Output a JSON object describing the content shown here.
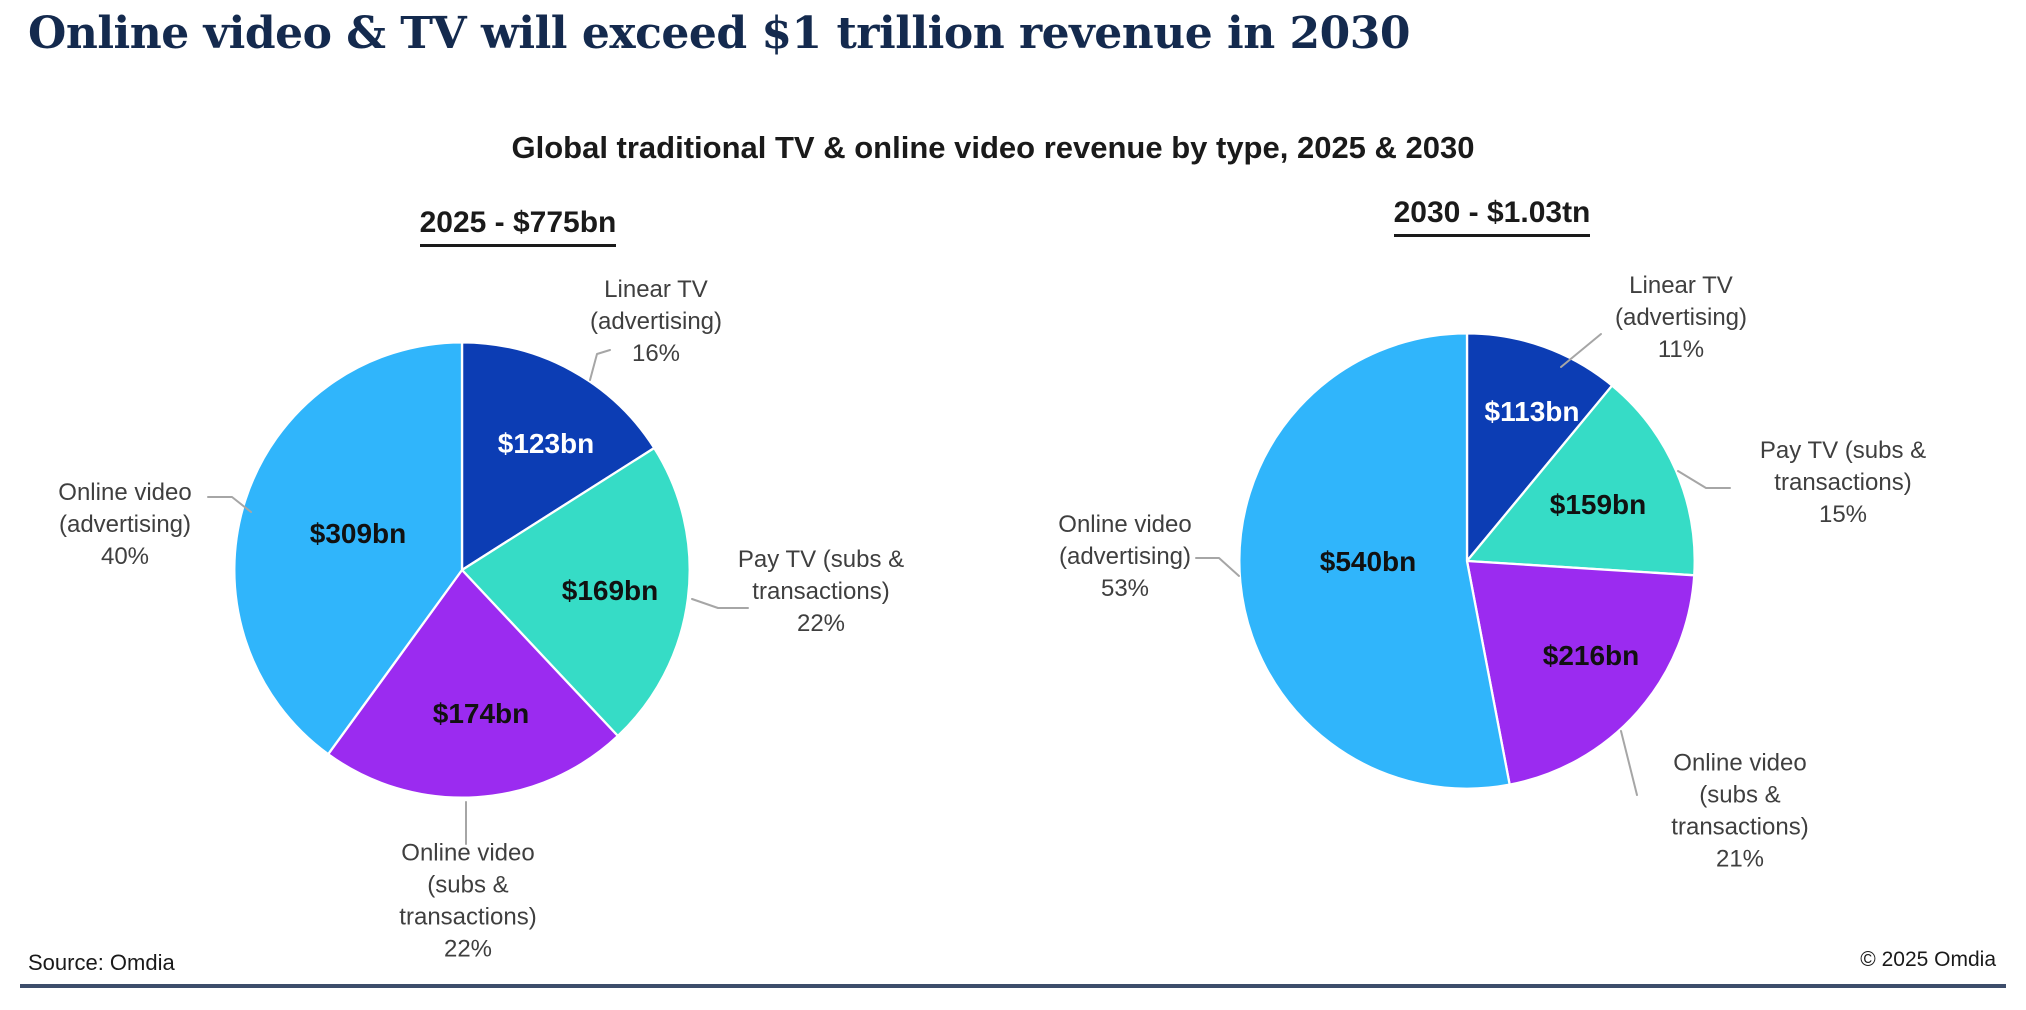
{
  "page": {
    "title": "Online video & TV will exceed $1 trillion revenue in 2030",
    "subtitle": "Global traditional TV & online video revenue by type, 2025 & 2030",
    "source": "Source: Omdia",
    "copyright": "© 2025 Omdia",
    "colors": {
      "title_navy": "#142a4e",
      "footer_rule": "#3d4d6b",
      "callout_gray": "#3f3f3f",
      "linear_tv_blue": "#0c3db4",
      "pay_tv_teal": "#36dcc6",
      "online_video_subs_purple": "#9b2bf0",
      "online_video_ads_lightblue": "#30b5fb"
    }
  },
  "chart_data": [
    {
      "type": "pie",
      "title": "2025 - $775bn",
      "year": "2025",
      "total_label": "$775bn",
      "units": "USD billions",
      "legend": "none (direct slice callouts)",
      "slices": [
        {
          "name": "Linear TV (advertising)",
          "callout": "Linear TV\n(advertising)\n16%",
          "pct": 16,
          "value": "$123bn",
          "amount_bn": 123,
          "color": "#0c3db4",
          "value_text_color": "#ffffff"
        },
        {
          "name": "Pay TV (subs & transactions)",
          "callout": "Pay TV (subs &\ntransactions)\n22%",
          "pct": 22,
          "value": "$169bn",
          "amount_bn": 169,
          "color": "#36dcc6",
          "value_text_color": "#111111"
        },
        {
          "name": "Online video (subs & transactions)",
          "callout": "Online video\n(subs &\ntransactions)\n22%",
          "pct": 22,
          "value": "$174bn",
          "amount_bn": 174,
          "color": "#9b2bf0",
          "value_text_color": "#111111"
        },
        {
          "name": "Online video (advertising)",
          "callout": "Online video\n(advertising)\n40%",
          "pct": 40,
          "value": "$309bn",
          "amount_bn": 309,
          "color": "#30b5fb",
          "value_text_color": "#111111"
        }
      ]
    },
    {
      "type": "pie",
      "title": "2030 - $1.03tn",
      "year": "2030",
      "total_label": "$1.03tn",
      "units": "USD billions",
      "legend": "none (direct slice callouts)",
      "slices": [
        {
          "name": "Linear TV (advertising)",
          "callout": "Linear TV\n(advertising)\n11%",
          "pct": 11,
          "value": "$113bn",
          "amount_bn": 113,
          "color": "#0c3db4",
          "value_text_color": "#ffffff"
        },
        {
          "name": "Pay TV (subs & transactions)",
          "callout": "Pay TV (subs &\ntransactions)\n15%",
          "pct": 15,
          "value": "$159bn",
          "amount_bn": 159,
          "color": "#36dcc6",
          "value_text_color": "#111111"
        },
        {
          "name": "Online video (subs & transactions)",
          "callout": "Online video\n(subs &\ntransactions)\n21%",
          "pct": 21,
          "value": "$216bn",
          "amount_bn": 216,
          "color": "#9b2bf0",
          "value_text_color": "#111111"
        },
        {
          "name": "Online video (advertising)",
          "callout": "Online video\n(advertising)\n53%",
          "pct": 53,
          "value": "$540bn",
          "amount_bn": 540,
          "color": "#30b5fb",
          "value_text_color": "#111111"
        }
      ]
    }
  ]
}
